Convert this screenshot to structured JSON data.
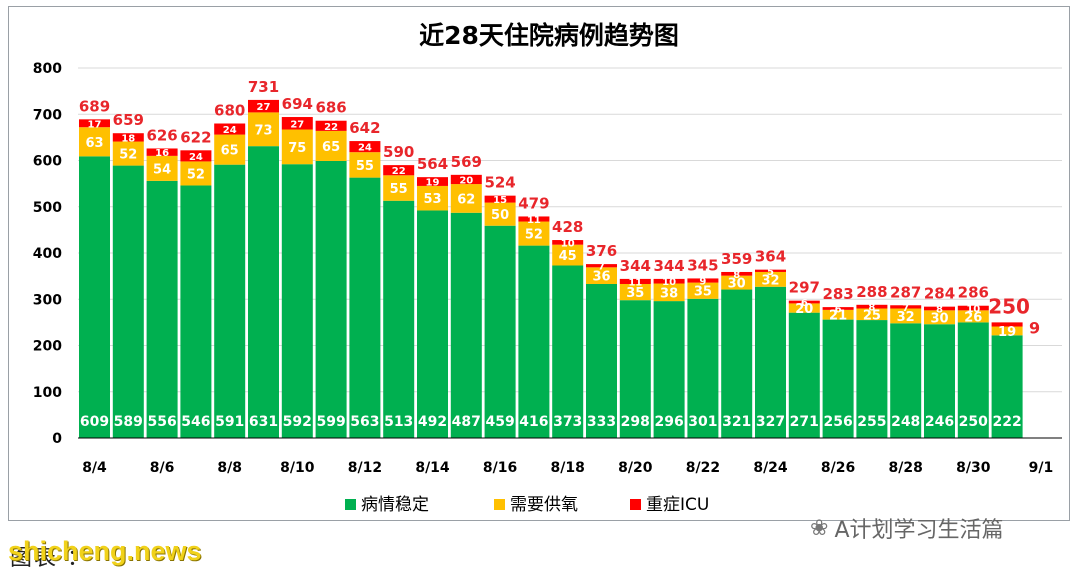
{
  "chart_data": {
    "type": "bar",
    "stacked": true,
    "title": "近28天住院病例趋势图",
    "ylim": [
      0,
      800
    ],
    "yticks": [
      0,
      100,
      200,
      300,
      400,
      500,
      600,
      700,
      800
    ],
    "grid": true,
    "legend_position": "bottom",
    "categories": [
      "8/4",
      "8/5",
      "8/6",
      "8/7",
      "8/8",
      "8/9",
      "8/10",
      "8/11",
      "8/12",
      "8/13",
      "8/14",
      "8/15",
      "8/16",
      "8/17",
      "8/18",
      "8/19",
      "8/20",
      "8/21",
      "8/22",
      "8/23",
      "8/24",
      "8/25",
      "8/26",
      "8/27",
      "8/28",
      "8/29",
      "8/30",
      "8/31"
    ],
    "xtick_labels": [
      "8/4",
      "8/6",
      "8/8",
      "8/10",
      "8/12",
      "8/14",
      "8/16",
      "8/18",
      "8/20",
      "8/22",
      "8/24",
      "8/26",
      "8/28",
      "8/30",
      "9/1"
    ],
    "series": [
      {
        "name": "病情稳定",
        "color": "#00b050",
        "values": [
          609,
          589,
          556,
          546,
          591,
          631,
          592,
          599,
          563,
          513,
          492,
          487,
          459,
          416,
          373,
          333,
          298,
          296,
          301,
          321,
          327,
          271,
          256,
          255,
          248,
          246,
          250,
          222
        ]
      },
      {
        "name": "需要供氧",
        "color": "#ffc000",
        "values": [
          63,
          52,
          54,
          52,
          65,
          73,
          75,
          65,
          55,
          55,
          53,
          62,
          50,
          52,
          45,
          36,
          35,
          38,
          35,
          30,
          32,
          20,
          21,
          25,
          32,
          30,
          26,
          19
        ]
      },
      {
        "name": "重症ICU",
        "color": "#ff0000",
        "values": [
          17,
          18,
          16,
          24,
          24,
          27,
          27,
          22,
          24,
          22,
          19,
          20,
          15,
          11,
          10,
          7,
          11,
          10,
          9,
          8,
          5,
          6,
          6,
          8,
          7,
          8,
          10,
          9
        ]
      }
    ],
    "totals": [
      689,
      659,
      626,
      622,
      680,
      731,
      694,
      686,
      642,
      590,
      564,
      569,
      524,
      479,
      428,
      376,
      344,
      344,
      345,
      359,
      364,
      297,
      283,
      288,
      287,
      284,
      286,
      250
    ]
  },
  "colors": {
    "total_label": "#e8262b",
    "axis": "#000000",
    "grid": "#d9d9d9"
  },
  "footer": {
    "note": "图表 ：",
    "watermark": "shicheng.news",
    "account": "A计划学习生活篇",
    "account_icon": "wechat-icon"
  }
}
